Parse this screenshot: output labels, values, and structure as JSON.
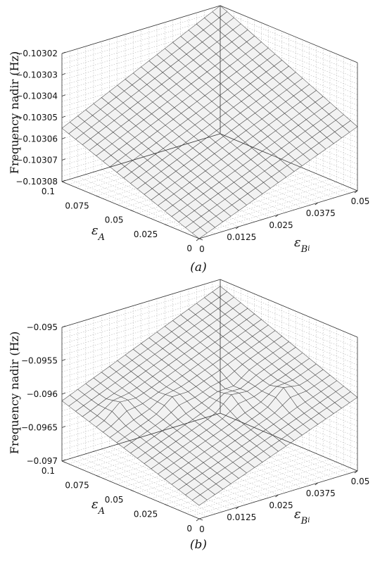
{
  "chart_data": [
    {
      "type": "surface",
      "panel_label": "(a)",
      "zlabel": "Frequency nadir (Hz)",
      "xlabel_sym": "ε",
      "xlabel_sub": "A",
      "ylabel_sym": "ε",
      "ylabel_sub": "B",
      "ylabel_subsub": "i",
      "x_ticks": [
        "0",
        "0.025",
        "0.05",
        "0.075",
        "0.1"
      ],
      "y_ticks": [
        "0",
        "0.0125",
        "0.025",
        "0.0375",
        "0.05"
      ],
      "z_ticks": [
        "-0.10308",
        "-0.10307",
        "-0.10306",
        "-0.10305",
        "-0.10304",
        "-0.10303",
        "-0.10302"
      ],
      "x_range": [
        0,
        0.1
      ],
      "y_range": [
        0,
        0.05
      ],
      "z_range": [
        -0.10308,
        -0.10302
      ],
      "grid": true,
      "corner_values": {
        "x0_y0": -0.10308,
        "x0.1_y0": -0.103055,
        "x0_y0.05": -0.10305,
        "x0.1_y0.05": -0.10302
      },
      "bumps": []
    },
    {
      "type": "surface",
      "panel_label": "(b)",
      "zlabel": "Frequency nadir (Hz)",
      "xlabel_sym": "ε",
      "xlabel_sub": "A",
      "ylabel_sym": "ε",
      "ylabel_sub": "B",
      "ylabel_subsub": "i",
      "x_ticks": [
        "0",
        "0.025",
        "0.05",
        "0.075",
        "0.1"
      ],
      "y_ticks": [
        "0",
        "0.0125",
        "0.025",
        "0.0375",
        "0.05"
      ],
      "z_ticks": [
        "-0.097",
        "-0.0965",
        "-0.096",
        "-0.0955",
        "-0.095"
      ],
      "x_range": [
        0,
        0.1
      ],
      "y_range": [
        0,
        0.05
      ],
      "z_range": [
        -0.097,
        -0.095
      ],
      "grid": true,
      "corner_values": {
        "x0_y0": -0.0968,
        "x0.1_y0": -0.0961,
        "x0_y0.05": -0.0959,
        "x0.1_y0.05": -0.0951
      },
      "bumps": [
        {
          "x": 0.075,
          "y": 0.0075,
          "dz": 0.00012
        },
        {
          "x": 0.06,
          "y": 0.0175,
          "dz": 0.0001
        },
        {
          "x": 0.04,
          "y": 0.0275,
          "dz": 0.00012
        },
        {
          "x": 0.025,
          "y": 0.0375,
          "dz": 0.00014
        },
        {
          "x": 0.05,
          "y": 0.0325,
          "dz": -8e-05
        }
      ]
    }
  ]
}
